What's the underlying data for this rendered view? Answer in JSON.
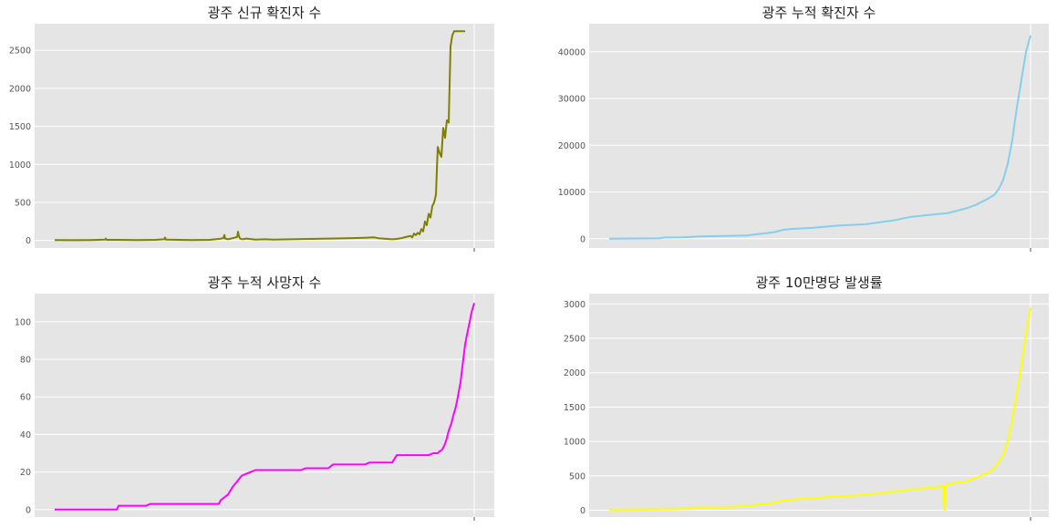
{
  "chart_data": [
    {
      "type": "line",
      "title": "광주 신규 확진자 수",
      "xlabel": "",
      "ylabel": "",
      "ylim": [
        -100,
        2850
      ],
      "yticks": [
        0,
        500,
        1000,
        1500,
        2000,
        2500
      ],
      "grid": true,
      "color": "#808000",
      "series": [
        {
          "x": [
            0,
            20,
            40,
            55,
            56,
            57,
            70,
            90,
            110,
            120,
            121,
            122,
            150,
            170,
            180,
            185,
            186,
            187,
            190,
            195,
            200,
            201,
            202,
            203,
            204,
            206,
            210,
            220,
            230,
            240,
            260,
            280,
            300,
            320,
            340,
            350,
            355,
            360,
            365,
            370,
            375,
            380,
            385,
            390,
            392,
            394,
            396,
            398,
            400,
            402,
            404,
            406,
            408,
            410,
            412,
            414,
            416,
            418,
            420,
            422,
            424,
            426,
            428,
            430,
            432,
            434,
            436,
            438,
            440,
            442,
            444,
            446,
            448,
            450
          ],
          "y": [
            5,
            3,
            5,
            10,
            25,
            8,
            8,
            5,
            8,
            15,
            38,
            10,
            5,
            8,
            20,
            30,
            72,
            25,
            15,
            30,
            45,
            115,
            60,
            30,
            20,
            15,
            25,
            10,
            15,
            12,
            15,
            20,
            25,
            28,
            35,
            40,
            30,
            25,
            20,
            15,
            20,
            30,
            45,
            60,
            40,
            90,
            70,
            100,
            80,
            150,
            120,
            250,
            200,
            350,
            300,
            450,
            500,
            600,
            1230,
            1150,
            1100,
            1480,
            1350,
            1580,
            1550,
            2550,
            2700,
            2750,
            2750,
            2750,
            2750,
            2750,
            2750,
            2750
          ]
        }
      ]
    },
    {
      "type": "line",
      "title": "광주 누적 확진자 수",
      "xlabel": "",
      "ylabel": "",
      "ylim": [
        -2000,
        46000
      ],
      "yticks": [
        0,
        10000,
        20000,
        30000,
        40000
      ],
      "grid": true,
      "color": "#87ceeb",
      "series": [
        {
          "x": [
            0,
            30,
            55,
            60,
            80,
            100,
            120,
            150,
            180,
            190,
            200,
            220,
            250,
            280,
            310,
            330,
            350,
            370,
            390,
            400,
            410,
            420,
            425,
            430,
            435,
            440,
            445,
            450,
            455,
            460
          ],
          "y": [
            0,
            50,
            100,
            250,
            300,
            500,
            550,
            700,
            1400,
            1900,
            2100,
            2300,
            2800,
            3100,
            3900,
            4700,
            5100,
            5500,
            6500,
            7200,
            8200,
            9300,
            10500,
            12500,
            16000,
            21000,
            28000,
            34000,
            40000,
            43500
          ]
        }
      ]
    },
    {
      "type": "line",
      "title": "광주 누적 사망자 수",
      "xlabel": "",
      "ylabel": "",
      "ylim": [
        -4,
        115
      ],
      "yticks": [
        0,
        20,
        40,
        60,
        80,
        100
      ],
      "grid": true,
      "color": "#ff00ff",
      "series": [
        {
          "x": [
            0,
            68,
            70,
            100,
            105,
            180,
            182,
            190,
            195,
            200,
            205,
            210,
            215,
            220,
            225,
            270,
            275,
            300,
            305,
            340,
            345,
            370,
            375,
            410,
            415,
            420,
            422,
            425,
            428,
            430,
            432,
            435,
            437,
            440,
            442,
            445,
            447,
            450,
            452,
            455,
            457,
            460
          ],
          "y": [
            0,
            0,
            2,
            2,
            3,
            3,
            5,
            8,
            12,
            15,
            18,
            19,
            20,
            21,
            21,
            21,
            22,
            22,
            24,
            24,
            25,
            25,
            29,
            29,
            30,
            30,
            31,
            32,
            35,
            38,
            42,
            46,
            50,
            55,
            60,
            68,
            76,
            88,
            93,
            100,
            105,
            110
          ]
        }
      ]
    },
    {
      "type": "line",
      "title": "광주 10만명당 발생률",
      "xlabel": "",
      "ylabel": "",
      "ylim": [
        -100,
        3150
      ],
      "yticks": [
        0,
        500,
        1000,
        1500,
        2000,
        2500,
        3000
      ],
      "grid": true,
      "color": "#ffff00",
      "series": [
        {
          "x": [
            0,
            30,
            55,
            60,
            80,
            100,
            120,
            150,
            180,
            190,
            200,
            220,
            250,
            280,
            310,
            330,
            365,
            366,
            367,
            368,
            370,
            390,
            400,
            410,
            420,
            425,
            430,
            435,
            440,
            445,
            450,
            455,
            460
          ],
          "y": [
            0,
            5,
            10,
            20,
            25,
            35,
            40,
            60,
            110,
            140,
            155,
            170,
            200,
            220,
            270,
            300,
            350,
            0,
            350,
            360,
            380,
            420,
            470,
            520,
            600,
            700,
            800,
            1000,
            1300,
            1700,
            2100,
            2600,
            2950
          ]
        }
      ]
    }
  ]
}
